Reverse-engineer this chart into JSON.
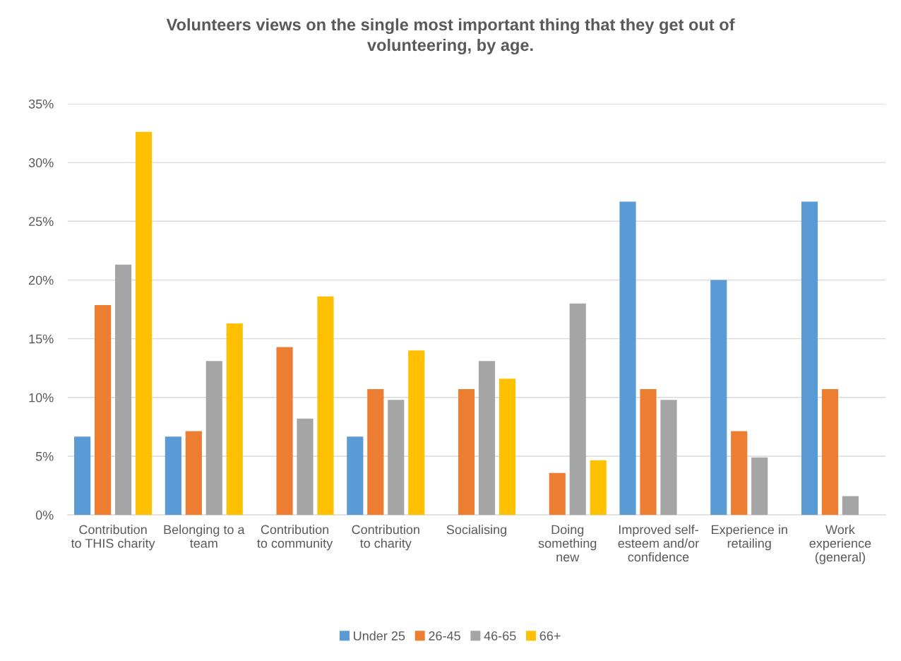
{
  "chart_data": {
    "type": "bar",
    "title": "Volunteers views on the single most important thing that they get out of\nvolunteering, by age.",
    "categories": [
      "Contribution\nto THIS charity",
      "Belonging to a\nteam",
      "Contribution\nto community",
      "Contribution\nto charity",
      "Socialising",
      "Doing\nsomething\nnew",
      "Improved self-\nesteem and/or\nconfidence",
      "Experience in\nretailing",
      "Work\nexperience\n(general)"
    ],
    "series": [
      {
        "name": "Under 25",
        "color": "#5b9bd5",
        "values": [
          6.67,
          6.67,
          0,
          6.67,
          0,
          0,
          26.67,
          20.0,
          26.67
        ]
      },
      {
        "name": "26-45",
        "color": "#ed7d31",
        "values": [
          17.86,
          7.14,
          14.29,
          10.71,
          10.71,
          3.57,
          10.71,
          7.14,
          10.71
        ]
      },
      {
        "name": "46-65",
        "color": "#a5a5a5",
        "values": [
          21.3,
          13.1,
          8.2,
          9.8,
          13.1,
          18.0,
          9.8,
          4.9,
          1.6
        ]
      },
      {
        "name": "66+",
        "color": "#ffc000",
        "values": [
          32.6,
          16.3,
          18.6,
          14.0,
          11.6,
          4.65,
          0,
          0,
          0
        ]
      }
    ],
    "ylim": [
      0,
      35
    ],
    "yticks": [
      {
        "value": 0,
        "label": "0%"
      },
      {
        "value": 5,
        "label": "5%"
      },
      {
        "value": 10,
        "label": "10%"
      },
      {
        "value": 15,
        "label": "15%"
      },
      {
        "value": 20,
        "label": "20%"
      },
      {
        "value": 25,
        "label": "25%"
      },
      {
        "value": 30,
        "label": "30%"
      },
      {
        "value": 35,
        "label": "35%"
      }
    ],
    "grid": "y",
    "legend": "bottom"
  }
}
